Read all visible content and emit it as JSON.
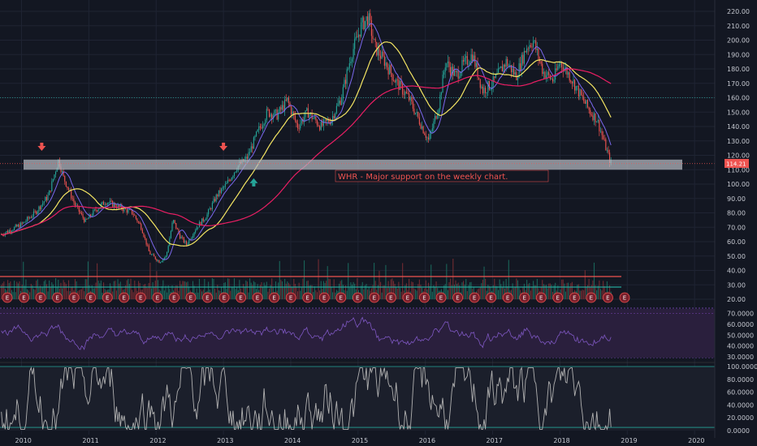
{
  "chart_data": {
    "type": "candlestick",
    "title": "",
    "ticker_note": "WHR - Major support on the weekly chart.",
    "current_price": "114.21",
    "colors": {
      "background": "#131722",
      "up": "#26a69a",
      "down": "#ef5350",
      "ma_yellow": "#f5e663",
      "ma_magenta": "#e91e63",
      "ma_blue": "#7b68ee",
      "support_band": "#b2b5be",
      "rsi_line": "#7e57c2",
      "stoch_line": "#b0b0b0",
      "level_line": "#26a69a"
    },
    "price_axis": {
      "min": 20,
      "max": 220,
      "ticks": [
        "220.00",
        "210.00",
        "200.00",
        "190.00",
        "180.00",
        "170.00",
        "160.00",
        "150.00",
        "140.00",
        "130.00",
        "120.00",
        "110.00",
        "100.00",
        "90.00",
        "80.00",
        "70.00",
        "60.00",
        "50.00",
        "40.00",
        "30.00",
        "20.00"
      ]
    },
    "rsi_axis": {
      "min": 30,
      "max": 72,
      "ticks": [
        "70.0000",
        "60.0000",
        "50.0000",
        "40.0000",
        "30.0000"
      ]
    },
    "stoch_axis": {
      "min": 0,
      "max": 100,
      "ticks": [
        "100.0000",
        "80.0000",
        "60.0000",
        "40.0000",
        "20.0000",
        "0.0000"
      ]
    },
    "x_axis": {
      "start": 2010.0,
      "end": 2020.3,
      "ticks": [
        "2010",
        "2011",
        "2012",
        "2013",
        "2014",
        "2015",
        "2016",
        "2017",
        "2018",
        "2019",
        "2020"
      ]
    },
    "support_zone": {
      "low": 110,
      "high": 117
    },
    "resistance_level": 160,
    "price_keypoints": [
      [
        2009.7,
        65
      ],
      [
        2010.0,
        72
      ],
      [
        2010.2,
        80
      ],
      [
        2010.4,
        92
      ],
      [
        2010.55,
        117
      ],
      [
        2010.62,
        105
      ],
      [
        2010.8,
        85
      ],
      [
        2010.95,
        74
      ],
      [
        2011.1,
        82
      ],
      [
        2011.25,
        88
      ],
      [
        2011.45,
        84
      ],
      [
        2011.65,
        80
      ],
      [
        2011.78,
        70
      ],
      [
        2011.9,
        52
      ],
      [
        2012.05,
        46
      ],
      [
        2012.15,
        50
      ],
      [
        2012.25,
        75
      ],
      [
        2012.35,
        64
      ],
      [
        2012.45,
        58
      ],
      [
        2012.6,
        70
      ],
      [
        2012.75,
        78
      ],
      [
        2012.9,
        92
      ],
      [
        2013.05,
        100
      ],
      [
        2013.2,
        112
      ],
      [
        2013.35,
        118
      ],
      [
        2013.5,
        135
      ],
      [
        2013.65,
        150
      ],
      [
        2013.8,
        148
      ],
      [
        2013.95,
        158
      ],
      [
        2014.1,
        140
      ],
      [
        2014.25,
        150
      ],
      [
        2014.45,
        140
      ],
      [
        2014.6,
        145
      ],
      [
        2014.75,
        160
      ],
      [
        2014.9,
        190
      ],
      [
        2015.05,
        210
      ],
      [
        2015.15,
        216
      ],
      [
        2015.25,
        195
      ],
      [
        2015.4,
        185
      ],
      [
        2015.55,
        172
      ],
      [
        2015.75,
        160
      ],
      [
        2015.9,
        145
      ],
      [
        2016.05,
        130
      ],
      [
        2016.2,
        155
      ],
      [
        2016.3,
        185
      ],
      [
        2016.45,
        175
      ],
      [
        2016.55,
        182
      ],
      [
        2016.7,
        190
      ],
      [
        2016.85,
        165
      ],
      [
        2017.0,
        170
      ],
      [
        2017.2,
        185
      ],
      [
        2017.35,
        175
      ],
      [
        2017.5,
        195
      ],
      [
        2017.6,
        200
      ],
      [
        2017.75,
        178
      ],
      [
        2017.9,
        172
      ],
      [
        2018.0,
        185
      ],
      [
        2018.15,
        175
      ],
      [
        2018.3,
        162
      ],
      [
        2018.45,
        150
      ],
      [
        2018.55,
        145
      ],
      [
        2018.65,
        130
      ],
      [
        2018.75,
        115
      ]
    ],
    "earnings_markers": [
      "E",
      "E",
      "E",
      "E",
      "E",
      "E",
      "E",
      "E",
      "E",
      "E",
      "E",
      "E",
      "E",
      "E",
      "E",
      "E",
      "E",
      "E",
      "E",
      "E",
      "E",
      "E",
      "E",
      "E",
      "E",
      "E",
      "E",
      "E",
      "E",
      "E",
      "E",
      "E",
      "E",
      "E",
      "E",
      "E",
      "E",
      "E"
    ],
    "signal_arrows": [
      {
        "x": 2010.3,
        "price": 122,
        "dir": "down"
      },
      {
        "x": 2013.0,
        "price": 122,
        "dir": "down"
      },
      {
        "x": 2013.45,
        "price": 104,
        "dir": "up"
      }
    ]
  }
}
